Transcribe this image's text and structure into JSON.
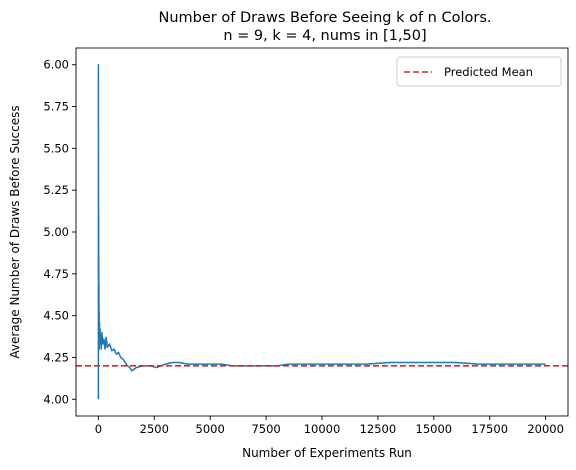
{
  "chart_data": {
    "type": "line",
    "title": [
      "Number of Draws Before Seeing k of n Colors.",
      "n = 9, k = 4, nums in [1,50]"
    ],
    "xlabel": "Number of Experiments Run",
    "ylabel": "Average Number of Draws Before Success",
    "xlim": [
      -1000,
      21000
    ],
    "ylim": [
      3.9,
      6.1
    ],
    "xticks": [
      0,
      2500,
      5000,
      7500,
      10000,
      12500,
      15000,
      17500,
      20000
    ],
    "xtick_labels": [
      "0",
      "2500",
      "5000",
      "7500",
      "10000",
      "12500",
      "15000",
      "17500",
      "20000"
    ],
    "yticks": [
      4.0,
      4.25,
      4.5,
      4.75,
      5.0,
      5.25,
      5.5,
      5.75,
      6.0
    ],
    "ytick_labels": [
      "4.00",
      "4.25",
      "4.50",
      "4.75",
      "5.00",
      "5.25",
      "5.50",
      "5.75",
      "6.00"
    ],
    "grid": false,
    "legend_position": "upper right",
    "series": [
      {
        "name": "",
        "color": "#1f77b4",
        "style": "solid",
        "x": [
          1,
          2,
          3,
          4,
          5,
          6,
          8,
          10,
          12,
          15,
          18,
          22,
          26,
          30,
          35,
          40,
          50,
          60,
          75,
          90,
          110,
          130,
          160,
          200,
          250,
          300,
          350,
          400,
          500,
          600,
          700,
          800,
          900,
          1000,
          1100,
          1200,
          1300,
          1400,
          1500,
          1700,
          2000,
          2300,
          2600,
          3000,
          3300,
          3600,
          4000,
          4500,
          5000,
          5500,
          6000,
          6500,
          7000,
          7500,
          8000,
          8500,
          9000,
          10000,
          11000,
          12000,
          13000,
          14000,
          15000,
          16000,
          17000,
          18000,
          19000,
          20000
        ],
        "y": [
          4.0,
          6.0,
          5.33,
          5.0,
          5.5,
          4.83,
          5.25,
          4.7,
          5.1,
          4.6,
          4.85,
          4.45,
          4.68,
          4.35,
          4.52,
          4.3,
          4.46,
          4.33,
          4.42,
          4.34,
          4.38,
          4.3,
          4.4,
          4.33,
          4.36,
          4.3,
          4.37,
          4.31,
          4.33,
          4.29,
          4.3,
          4.27,
          4.28,
          4.25,
          4.24,
          4.22,
          4.2,
          4.19,
          4.17,
          4.19,
          4.2,
          4.2,
          4.19,
          4.21,
          4.22,
          4.22,
          4.21,
          4.21,
          4.21,
          4.21,
          4.2,
          4.2,
          4.2,
          4.2,
          4.2,
          4.21,
          4.21,
          4.21,
          4.21,
          4.21,
          4.22,
          4.22,
          4.22,
          4.22,
          4.21,
          4.21,
          4.21,
          4.21
        ]
      },
      {
        "name": "Predicted Mean",
        "color": "#d62728",
        "style": "dashed",
        "constant_y": 4.2
      }
    ]
  }
}
